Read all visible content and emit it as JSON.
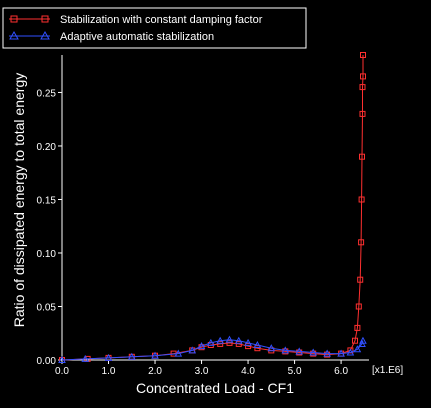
{
  "chart_data": {
    "type": "line",
    "xlabel": "Concentrated  Load - CF1",
    "ylabel": "Ratio of dissipated energy to total energy",
    "x_scale_label": "[x1.E6]",
    "xlim": [
      0.0,
      6.6
    ],
    "ylim": [
      0.0,
      0.285
    ],
    "xticks": [
      "0.0",
      "1.0",
      "2.0",
      "3.0",
      "4.0",
      "5.0",
      "6.0"
    ],
    "yticks": [
      "0.00",
      "0.05",
      "0.10",
      "0.15",
      "0.20",
      "0.25"
    ],
    "legend_position": "top-left",
    "series": [
      {
        "name": "Stabilization with constant damping factor",
        "color": "#ff3030",
        "marker": "square",
        "points": [
          [
            0.0,
            0.0
          ],
          [
            0.55,
            0.001
          ],
          [
            1.0,
            0.002
          ],
          [
            1.5,
            0.003
          ],
          [
            2.0,
            0.004
          ],
          [
            2.4,
            0.006
          ],
          [
            2.8,
            0.009
          ],
          [
            3.0,
            0.012
          ],
          [
            3.2,
            0.014
          ],
          [
            3.4,
            0.015
          ],
          [
            3.6,
            0.016
          ],
          [
            3.8,
            0.015
          ],
          [
            4.0,
            0.013
          ],
          [
            4.2,
            0.011
          ],
          [
            4.5,
            0.009
          ],
          [
            4.8,
            0.008
          ],
          [
            5.1,
            0.007
          ],
          [
            5.4,
            0.006
          ],
          [
            5.7,
            0.005
          ],
          [
            6.0,
            0.006
          ],
          [
            6.2,
            0.009
          ],
          [
            6.3,
            0.018
          ],
          [
            6.35,
            0.03
          ],
          [
            6.38,
            0.05
          ],
          [
            6.41,
            0.075
          ],
          [
            6.43,
            0.11
          ],
          [
            6.44,
            0.15
          ],
          [
            6.45,
            0.19
          ],
          [
            6.46,
            0.23
          ],
          [
            6.46,
            0.255
          ],
          [
            6.47,
            0.265
          ],
          [
            6.47,
            0.285
          ]
        ]
      },
      {
        "name": "Adaptive automatic stabilization",
        "color": "#3050ff",
        "marker": "triangle",
        "points": [
          [
            0.0,
            0.0
          ],
          [
            0.5,
            0.001
          ],
          [
            1.0,
            0.002
          ],
          [
            1.5,
            0.003
          ],
          [
            2.0,
            0.004
          ],
          [
            2.5,
            0.006
          ],
          [
            2.8,
            0.009
          ],
          [
            3.0,
            0.013
          ],
          [
            3.2,
            0.016
          ],
          [
            3.4,
            0.018
          ],
          [
            3.6,
            0.019
          ],
          [
            3.8,
            0.018
          ],
          [
            4.0,
            0.016
          ],
          [
            4.2,
            0.014
          ],
          [
            4.5,
            0.011
          ],
          [
            4.8,
            0.009
          ],
          [
            5.1,
            0.008
          ],
          [
            5.4,
            0.007
          ],
          [
            5.7,
            0.006
          ],
          [
            6.0,
            0.006
          ],
          [
            6.2,
            0.007
          ],
          [
            6.35,
            0.01
          ],
          [
            6.45,
            0.015
          ],
          [
            6.47,
            0.018
          ]
        ]
      }
    ]
  }
}
